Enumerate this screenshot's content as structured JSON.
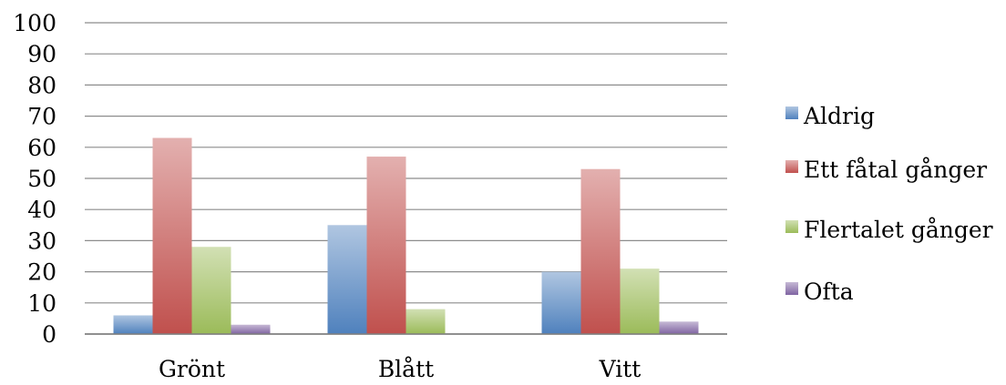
{
  "chart_data": {
    "type": "bar",
    "categories": [
      "Grönt",
      "Blått",
      "Vitt"
    ],
    "series": [
      {
        "name": "Aldrig",
        "values": [
          6,
          35,
          20
        ],
        "color": "#4f81bd"
      },
      {
        "name": "Ett fåtal gånger",
        "values": [
          63,
          57,
          53
        ],
        "color": "#c0504d"
      },
      {
        "name": "Flertalet gånger",
        "values": [
          28,
          8,
          21
        ],
        "color": "#9bbb59"
      },
      {
        "name": "Ofta",
        "values": [
          3,
          0,
          4
        ],
        "color": "#8064a2"
      }
    ],
    "ylim": [
      0,
      100
    ],
    "yticks": [
      0,
      10,
      20,
      30,
      40,
      50,
      60,
      70,
      80,
      90,
      100
    ],
    "grid": true,
    "legend_position": "right"
  }
}
